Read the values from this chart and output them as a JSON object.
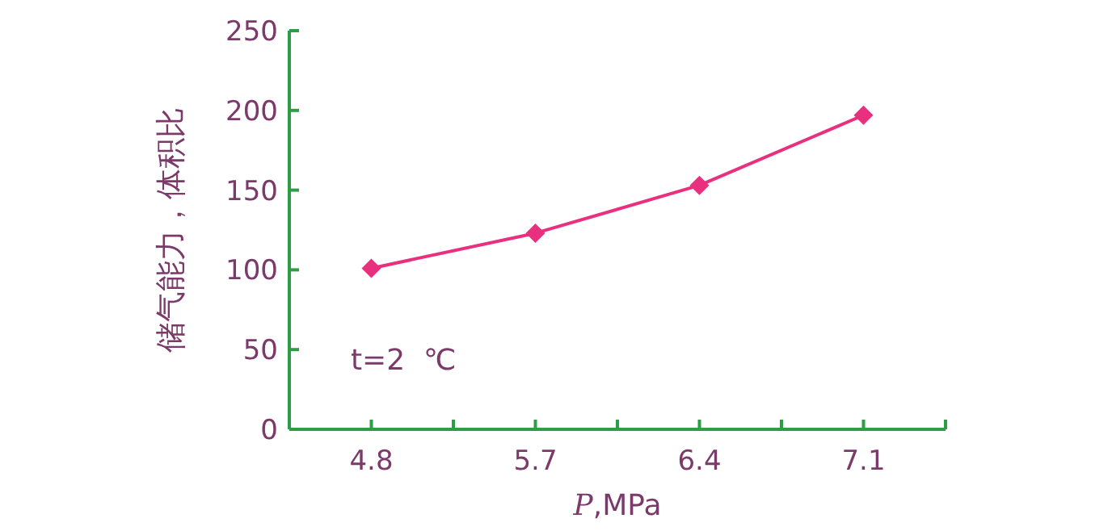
{
  "chart_data": {
    "type": "line",
    "xlabel": "P,MPa",
    "ylabel": "储气能力，体积比",
    "categories": [
      "4.8",
      "5.7",
      "6.4",
      "7.1"
    ],
    "series": [
      {
        "color": "#e8307f",
        "values": [
          101,
          123,
          153,
          197
        ]
      }
    ],
    "ylim": [
      0,
      250
    ],
    "yticks": [
      0,
      50,
      100,
      150,
      200,
      250
    ],
    "marker": "diamond",
    "line_style": "solid",
    "annotations": [
      "t=2  ℃"
    ]
  }
}
